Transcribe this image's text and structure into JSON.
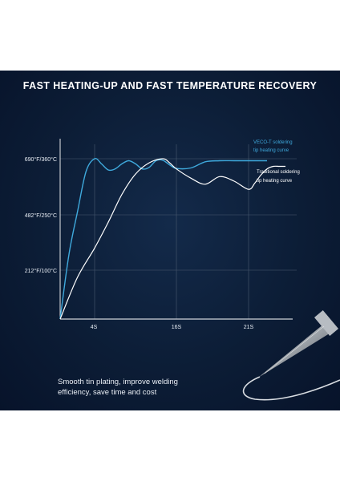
{
  "headline": "FAST HEATING-UP AND FAST TEMPERATURE RECOVERY",
  "caption_line1": "Smooth tin plating, improve welding",
  "caption_line2": "efficiency, save time and cost",
  "colors": {
    "background": "#0c1d36",
    "veco_curve": "#3fa9dc",
    "traditional_curve": "#ffffff",
    "grid": "#4a5a70"
  },
  "chart_data": {
    "type": "line",
    "title": "FAST HEATING-UP AND FAST TEMPERATURE RECOVERY",
    "xlabel": "",
    "ylabel": "",
    "x_ticks": [
      "4S",
      "16S",
      "21S"
    ],
    "y_ticks": [
      "212°F/100°C",
      "482°F/250°C",
      "690°F/360°C"
    ],
    "grid": true,
    "legend_placement": "right, next to curve ends",
    "series": [
      {
        "name": "VECO-T soldering tip heating curve",
        "color": "#3fa9dc",
        "points": [
          [
            0,
            0
          ],
          [
            1,
            140
          ],
          [
            2,
            255
          ],
          [
            3,
            335
          ],
          [
            4,
            360
          ],
          [
            5,
            350
          ],
          [
            6,
            338
          ],
          [
            7,
            340
          ],
          [
            8,
            350
          ],
          [
            9,
            356
          ],
          [
            10,
            350
          ],
          [
            11,
            340
          ],
          [
            12,
            343
          ],
          [
            13,
            356
          ],
          [
            14,
            357
          ],
          [
            15,
            348
          ],
          [
            16,
            341
          ],
          [
            17,
            342
          ],
          [
            18,
            354
          ],
          [
            19,
            356
          ],
          [
            20,
            356
          ],
          [
            21,
            356
          ],
          [
            22,
            356
          ],
          [
            23,
            356
          ],
          [
            24,
            356
          ]
        ]
      },
      {
        "name": "Traditional soldering tip heating curve",
        "color": "#ffffff",
        "points": [
          [
            0,
            0
          ],
          [
            2,
            85
          ],
          [
            4,
            160
          ],
          [
            6,
            230
          ],
          [
            8,
            290
          ],
          [
            10,
            330
          ],
          [
            12,
            352
          ],
          [
            14,
            360
          ],
          [
            15,
            352
          ],
          [
            16,
            340
          ],
          [
            17,
            322
          ],
          [
            18,
            310
          ],
          [
            19,
            325
          ],
          [
            20,
            316
          ],
          [
            21,
            300
          ],
          [
            22,
            312
          ],
          [
            23,
            328
          ],
          [
            24,
            340
          ],
          [
            25,
            345
          ],
          [
            26,
            345
          ],
          [
            27,
            345
          ]
        ]
      }
    ],
    "series_labels": [
      {
        "lines": [
          "VECO-T soldering",
          "tip heating curve"
        ],
        "color": "#3fa9dc"
      },
      {
        "lines": [
          "Traditional soldering",
          "tip heating curve"
        ],
        "color": "#ffffff"
      }
    ]
  },
  "product_image": "soldering-tip"
}
